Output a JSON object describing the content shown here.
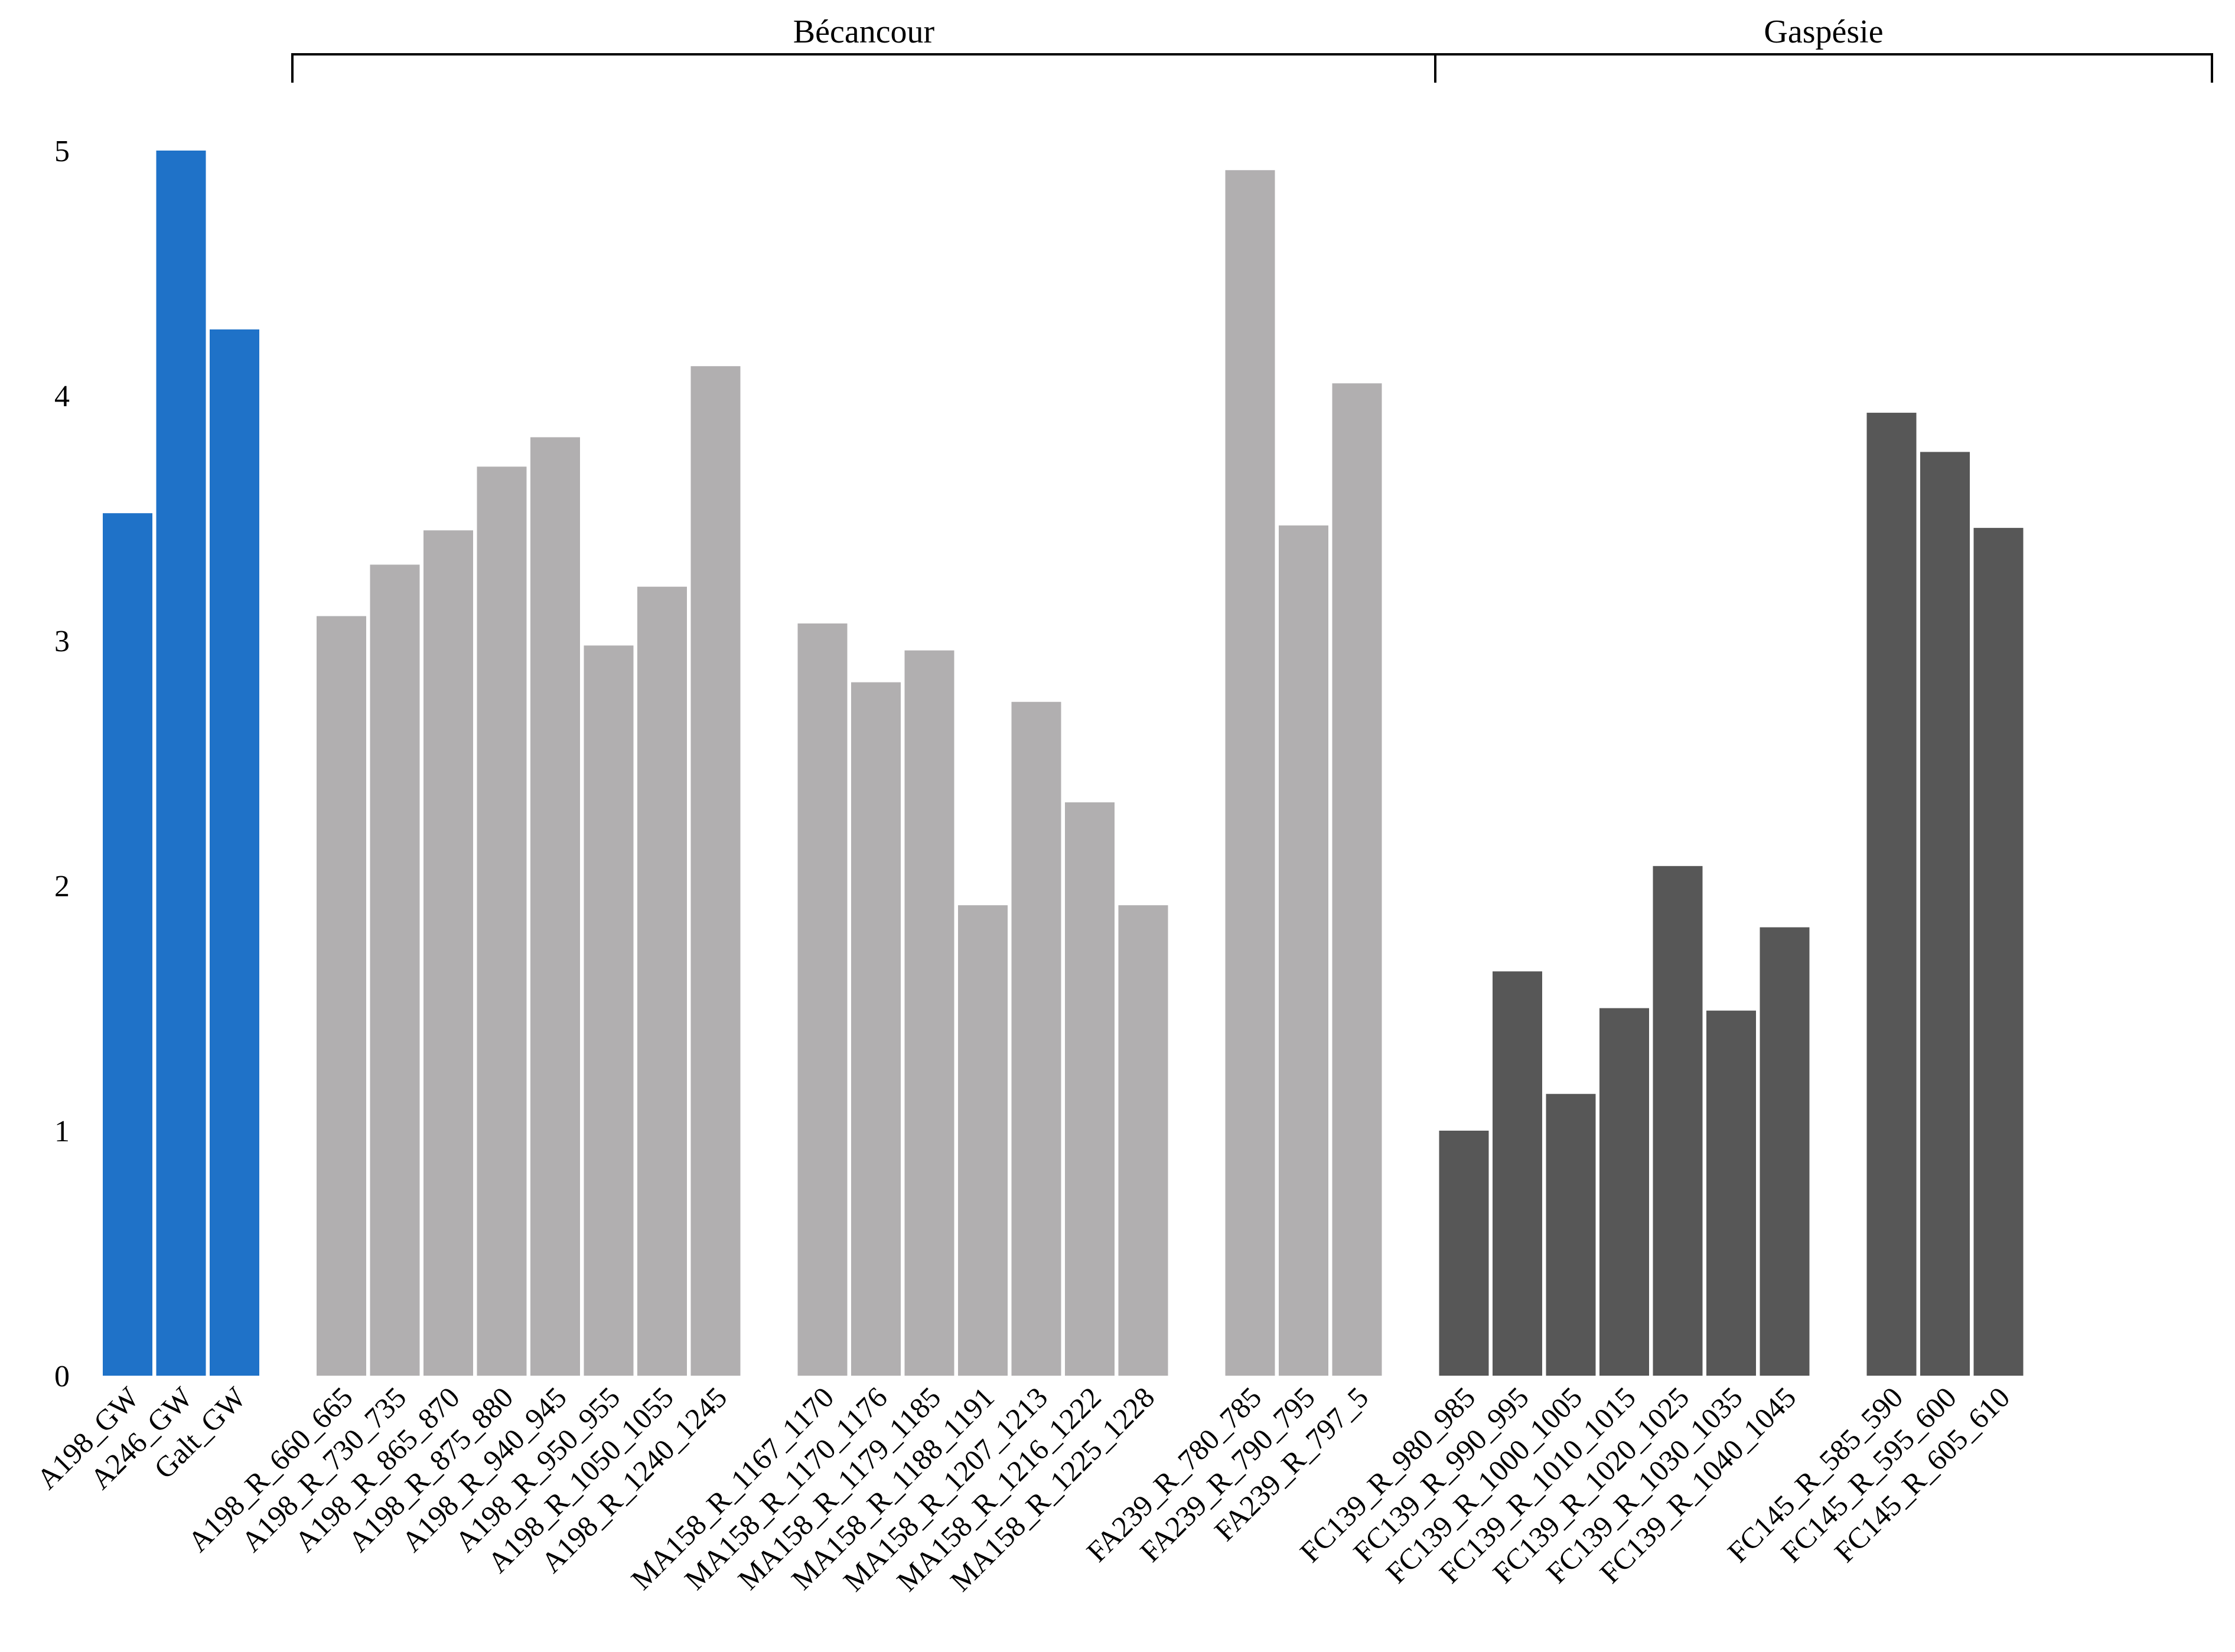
{
  "chart_data": {
    "type": "bar",
    "title": "",
    "xlabel": "",
    "ylabel": "",
    "ylim": [
      0,
      5
    ],
    "yticks": [
      0,
      1,
      2,
      3,
      4,
      5
    ],
    "grid": false,
    "legend": "none",
    "colors": {
      "groundwater": "#1f72c8",
      "becancour": "#b1afb0",
      "gaspesie": "#575757"
    },
    "groups": [
      {
        "label": "Bécancour",
        "from": "A198_R_660_665",
        "to": "FA239_R_797_5"
      },
      {
        "label": "Gaspésie",
        "from": "FC139_R_980_985",
        "to": "FC145_R_605_610"
      }
    ],
    "categories": [
      "A198_GW",
      "A246_GW",
      "Galt_GW",
      "A198_R_660_665",
      "A198_R_730_735",
      "A198_R_865_870",
      "A198_R_875_880",
      "A198_R_940_945",
      "A198_R_950_955",
      "A198_R_1050_1055",
      "A198_R_1240_1245",
      "MA158_R_1167_1170",
      "MA158_R_1170_1176",
      "MA158_R_1179_1185",
      "MA158_R_1188_1191",
      "MA158_R_1207_1213",
      "MA158_R_1216_1222",
      "MA158_R_1225_1228",
      "FA239_R_780_785",
      "FA239_R_790_795",
      "FA239_R_797_5",
      "FC139_R_980_985",
      "FC139_R_990_995",
      "FC139_R_1000_1005",
      "FC139_R_1010_1015",
      "FC139_R_1020_1025",
      "FC139_R_1030_1035",
      "FC139_R_1040_1045",
      "FC145_R_585_590",
      "FC145_R_595_600",
      "FC145_R_605_610"
    ],
    "values": [
      3.52,
      5.0,
      4.27,
      3.1,
      3.31,
      3.45,
      3.71,
      3.83,
      2.98,
      3.22,
      4.12,
      3.07,
      2.83,
      2.96,
      1.92,
      2.75,
      2.34,
      1.92,
      4.92,
      3.47,
      4.05,
      1.0,
      1.65,
      1.15,
      1.5,
      2.08,
      1.49,
      1.83,
      3.93,
      3.77,
      3.46
    ],
    "series_type": [
      "groundwater",
      "groundwater",
      "groundwater",
      "becancour",
      "becancour",
      "becancour",
      "becancour",
      "becancour",
      "becancour",
      "becancour",
      "becancour",
      "becancour",
      "becancour",
      "becancour",
      "becancour",
      "becancour",
      "becancour",
      "becancour",
      "becancour",
      "becancour",
      "becancour",
      "gaspesie",
      "gaspesie",
      "gaspesie",
      "gaspesie",
      "gaspesie",
      "gaspesie",
      "gaspesie",
      "gaspesie",
      "gaspesie",
      "gaspesie"
    ]
  }
}
